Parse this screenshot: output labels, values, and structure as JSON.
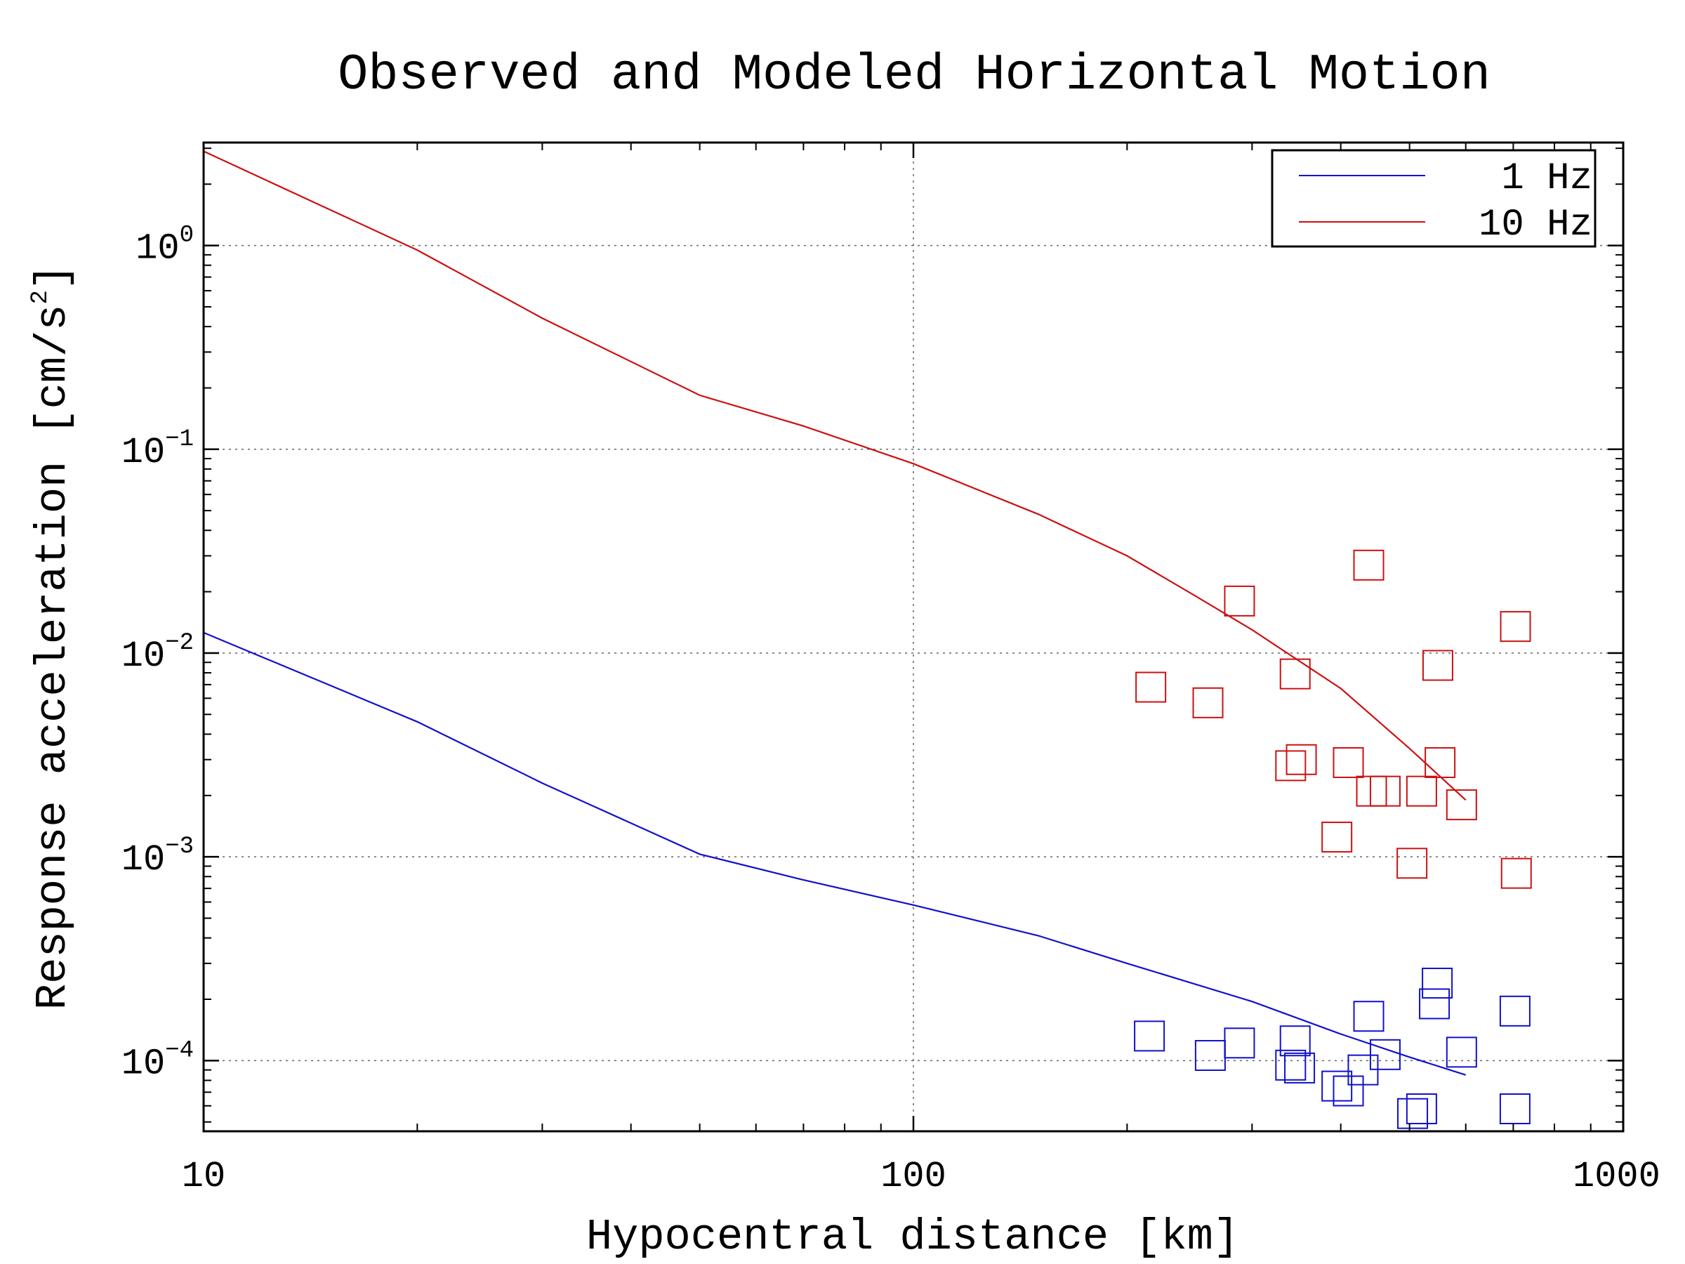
{
  "chart_data": {
    "type": "scatter",
    "title": "Observed and Modeled Horizontal Motion",
    "xlabel": "Hypocentral distance [km]",
    "ylabel": {
      "main": "Response acceleration [cm/s",
      "sup": "2",
      "close": "]"
    },
    "xscale": "log",
    "yscale": "log",
    "xlim": [
      10,
      1000
    ],
    "ylim": [
      4.5e-05,
      3.2
    ],
    "grid": true,
    "legend_position": "top-right",
    "x_ticks": [
      {
        "value": 10,
        "label": "10"
      },
      {
        "value": 100,
        "label": "100"
      },
      {
        "value": 1000,
        "label": "1000"
      }
    ],
    "y_ticks": [
      {
        "value": 1,
        "base": "10",
        "exp": "0"
      },
      {
        "value": 0.1,
        "base": "10",
        "exp": "−1"
      },
      {
        "value": 0.01,
        "base": "10",
        "exp": "−2"
      },
      {
        "value": 0.001,
        "base": "10",
        "exp": "−3"
      },
      {
        "value": 0.0001,
        "base": "10",
        "exp": "−4"
      }
    ],
    "series": [
      {
        "name": "1 Hz",
        "color": "#1111cc",
        "model": {
          "x": [
            10,
            20,
            30,
            50,
            70,
            100,
            150,
            200,
            300,
            400,
            500,
            600
          ],
          "y": [
            0.0126,
            0.0046,
            0.0023,
            0.00103,
            0.00077,
            0.00058,
            0.00041,
            0.0003,
            0.000195,
            0.000135,
            0.000104,
            8.5e-05
          ]
        },
        "observed": {
          "x": [
            215,
            262,
            288,
            340,
            345,
            350,
            395,
            410,
            430,
            438,
            462,
            505,
            520,
            542,
            547,
            592,
            704,
            704
          ],
          "y": [
            0.000132,
            0.000106,
            0.000122,
            9.5e-05,
            0.000125,
            9.2e-05,
            7.5e-05,
            7.1e-05,
            9e-05,
            0.000165,
            0.000107,
            5.5e-05,
            5.8e-05,
            0.00019,
            0.00024,
            0.00011,
            0.000175,
            5.8e-05
          ]
        }
      },
      {
        "name": "10 Hz",
        "color": "#cc1111",
        "model": {
          "x": [
            10,
            20,
            30,
            50,
            70,
            100,
            150,
            200,
            250,
            300,
            400,
            500,
            600
          ],
          "y": [
            2.9,
            0.95,
            0.44,
            0.184,
            0.13,
            0.085,
            0.048,
            0.03,
            0.019,
            0.013,
            0.0067,
            0.0034,
            0.0019
          ]
        },
        "observed": {
          "x": [
            216,
            260,
            288,
            340,
            345,
            352,
            395,
            410,
            438,
            442,
            462,
            504,
            520,
            548,
            552,
            592,
            705,
            707
          ],
          "y": [
            0.0068,
            0.0057,
            0.018,
            0.0028,
            0.0079,
            0.003,
            0.00125,
            0.0029,
            0.027,
            0.0021,
            0.0021,
            0.00093,
            0.0021,
            0.0087,
            0.0029,
            0.0018,
            0.0135,
            0.00083
          ]
        }
      }
    ]
  }
}
